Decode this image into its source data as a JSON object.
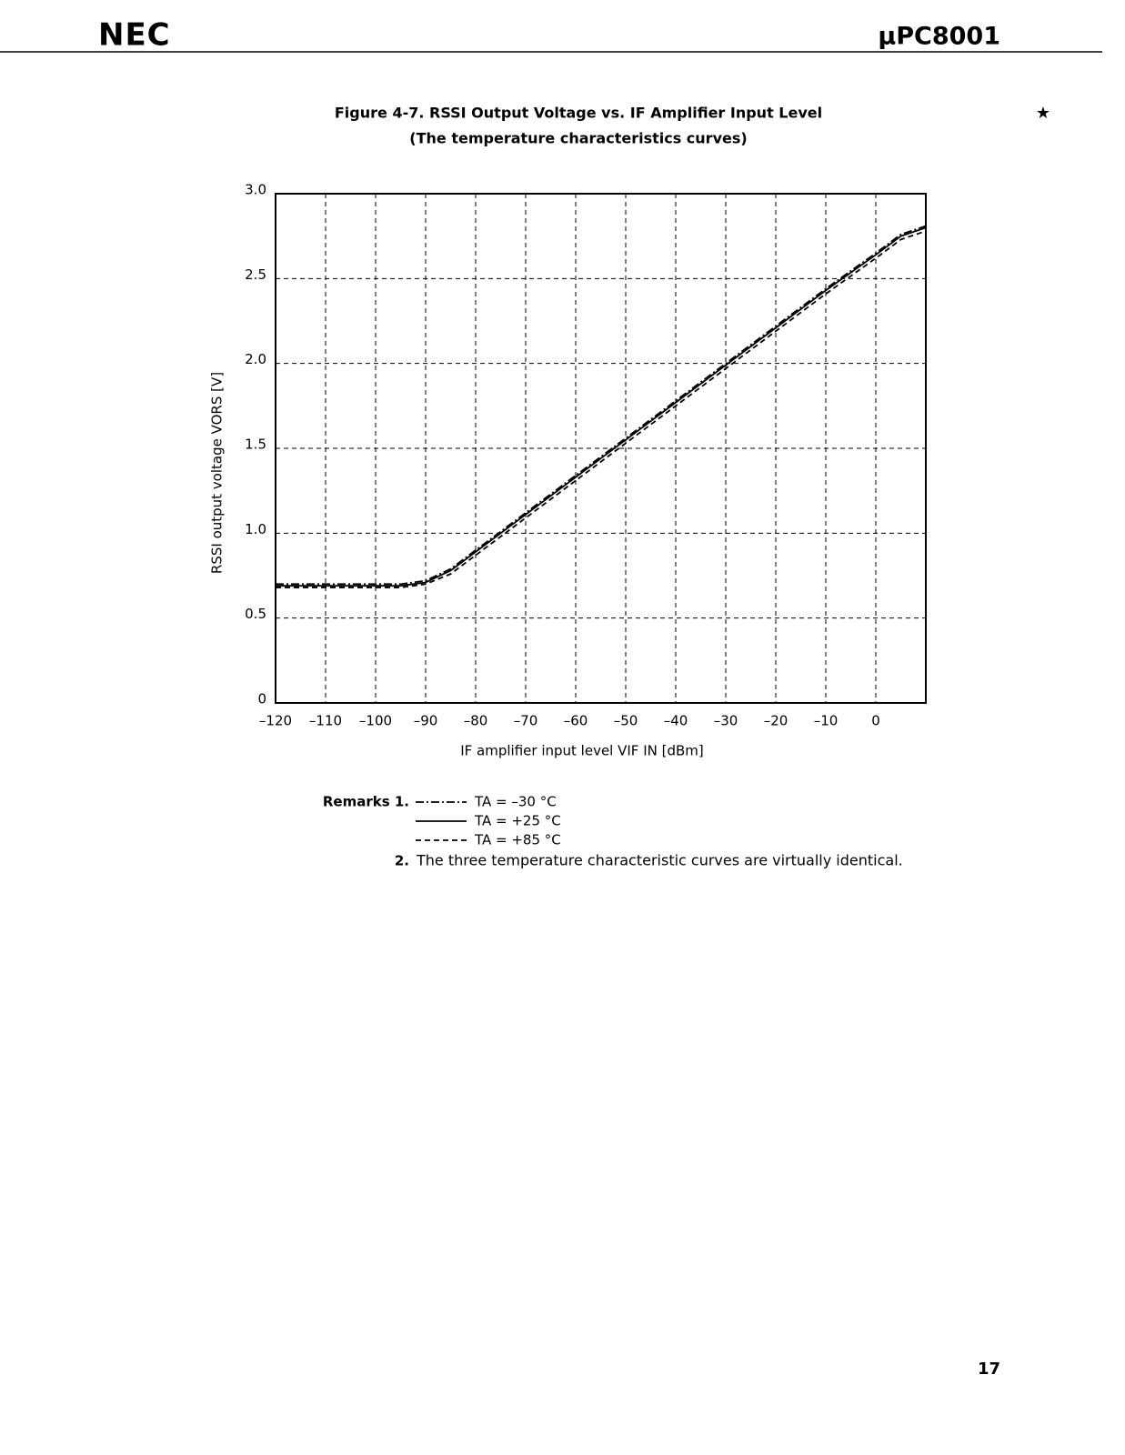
{
  "header": {
    "logo": "NEC",
    "part": "μPC8001"
  },
  "figure": {
    "title": "Figure 4-7.   RSSI Output Voltage vs. IF Amplifier Input Level",
    "subtitle": "(The temperature characteristics curves)",
    "mark": "★"
  },
  "chart_data": {
    "type": "line",
    "x_label": "IF amplifier input level  VIF IN [dBm]",
    "y_label": "RSSI output voltage  VORS [V]",
    "x": [
      -120,
      -110,
      -100,
      -95,
      -90,
      -85,
      -80,
      -70,
      -60,
      -50,
      -40,
      -30,
      -20,
      -10,
      0,
      5,
      10
    ],
    "series": [
      {
        "name": "TA = –30 °C",
        "color": "#000000",
        "dash": "dashdot",
        "values": [
          0.7,
          0.7,
          0.7,
          0.7,
          0.72,
          0.79,
          0.9,
          1.12,
          1.34,
          1.56,
          1.78,
          2.0,
          2.22,
          2.44,
          2.65,
          2.76,
          2.81
        ]
      },
      {
        "name": "TA = +25 °C",
        "color": "#000000",
        "dash": "solid",
        "values": [
          0.69,
          0.69,
          0.69,
          0.69,
          0.71,
          0.78,
          0.89,
          1.11,
          1.33,
          1.55,
          1.77,
          1.99,
          2.21,
          2.43,
          2.64,
          2.75,
          2.8
        ]
      },
      {
        "name": "TA = +85 °C",
        "color": "#000000",
        "dash": "dashed",
        "values": [
          0.68,
          0.68,
          0.68,
          0.68,
          0.7,
          0.76,
          0.87,
          1.09,
          1.31,
          1.53,
          1.75,
          1.97,
          2.19,
          2.41,
          2.62,
          2.73,
          2.78
        ]
      }
    ],
    "xlim": [
      -120,
      10
    ],
    "xticks": [
      {
        "value": -120,
        "label": "–120"
      },
      {
        "value": -110,
        "label": "–110"
      },
      {
        "value": -100,
        "label": "–100"
      },
      {
        "value": -90,
        "label": "–90"
      },
      {
        "value": -80,
        "label": "–80"
      },
      {
        "value": -70,
        "label": "–70"
      },
      {
        "value": -60,
        "label": "–60"
      },
      {
        "value": -50,
        "label": "–50"
      },
      {
        "value": -40,
        "label": "–40"
      },
      {
        "value": -30,
        "label": "–30"
      },
      {
        "value": -20,
        "label": "–20"
      },
      {
        "value": -10,
        "label": "–10"
      },
      0
    ],
    "ylim": [
      0,
      3
    ],
    "yticks": [
      0,
      0.5,
      {
        "value": 1,
        "label": "1.0"
      },
      1.5,
      {
        "value": 2,
        "label": "2.0"
      },
      2.5,
      {
        "value": 3,
        "label": "3.0"
      }
    ],
    "grid": true
  },
  "remarks": {
    "label": "Remarks 1.",
    "note_number": "2.",
    "note": "The three temperature characteristic curves are virtually identical."
  },
  "page_number": "17"
}
